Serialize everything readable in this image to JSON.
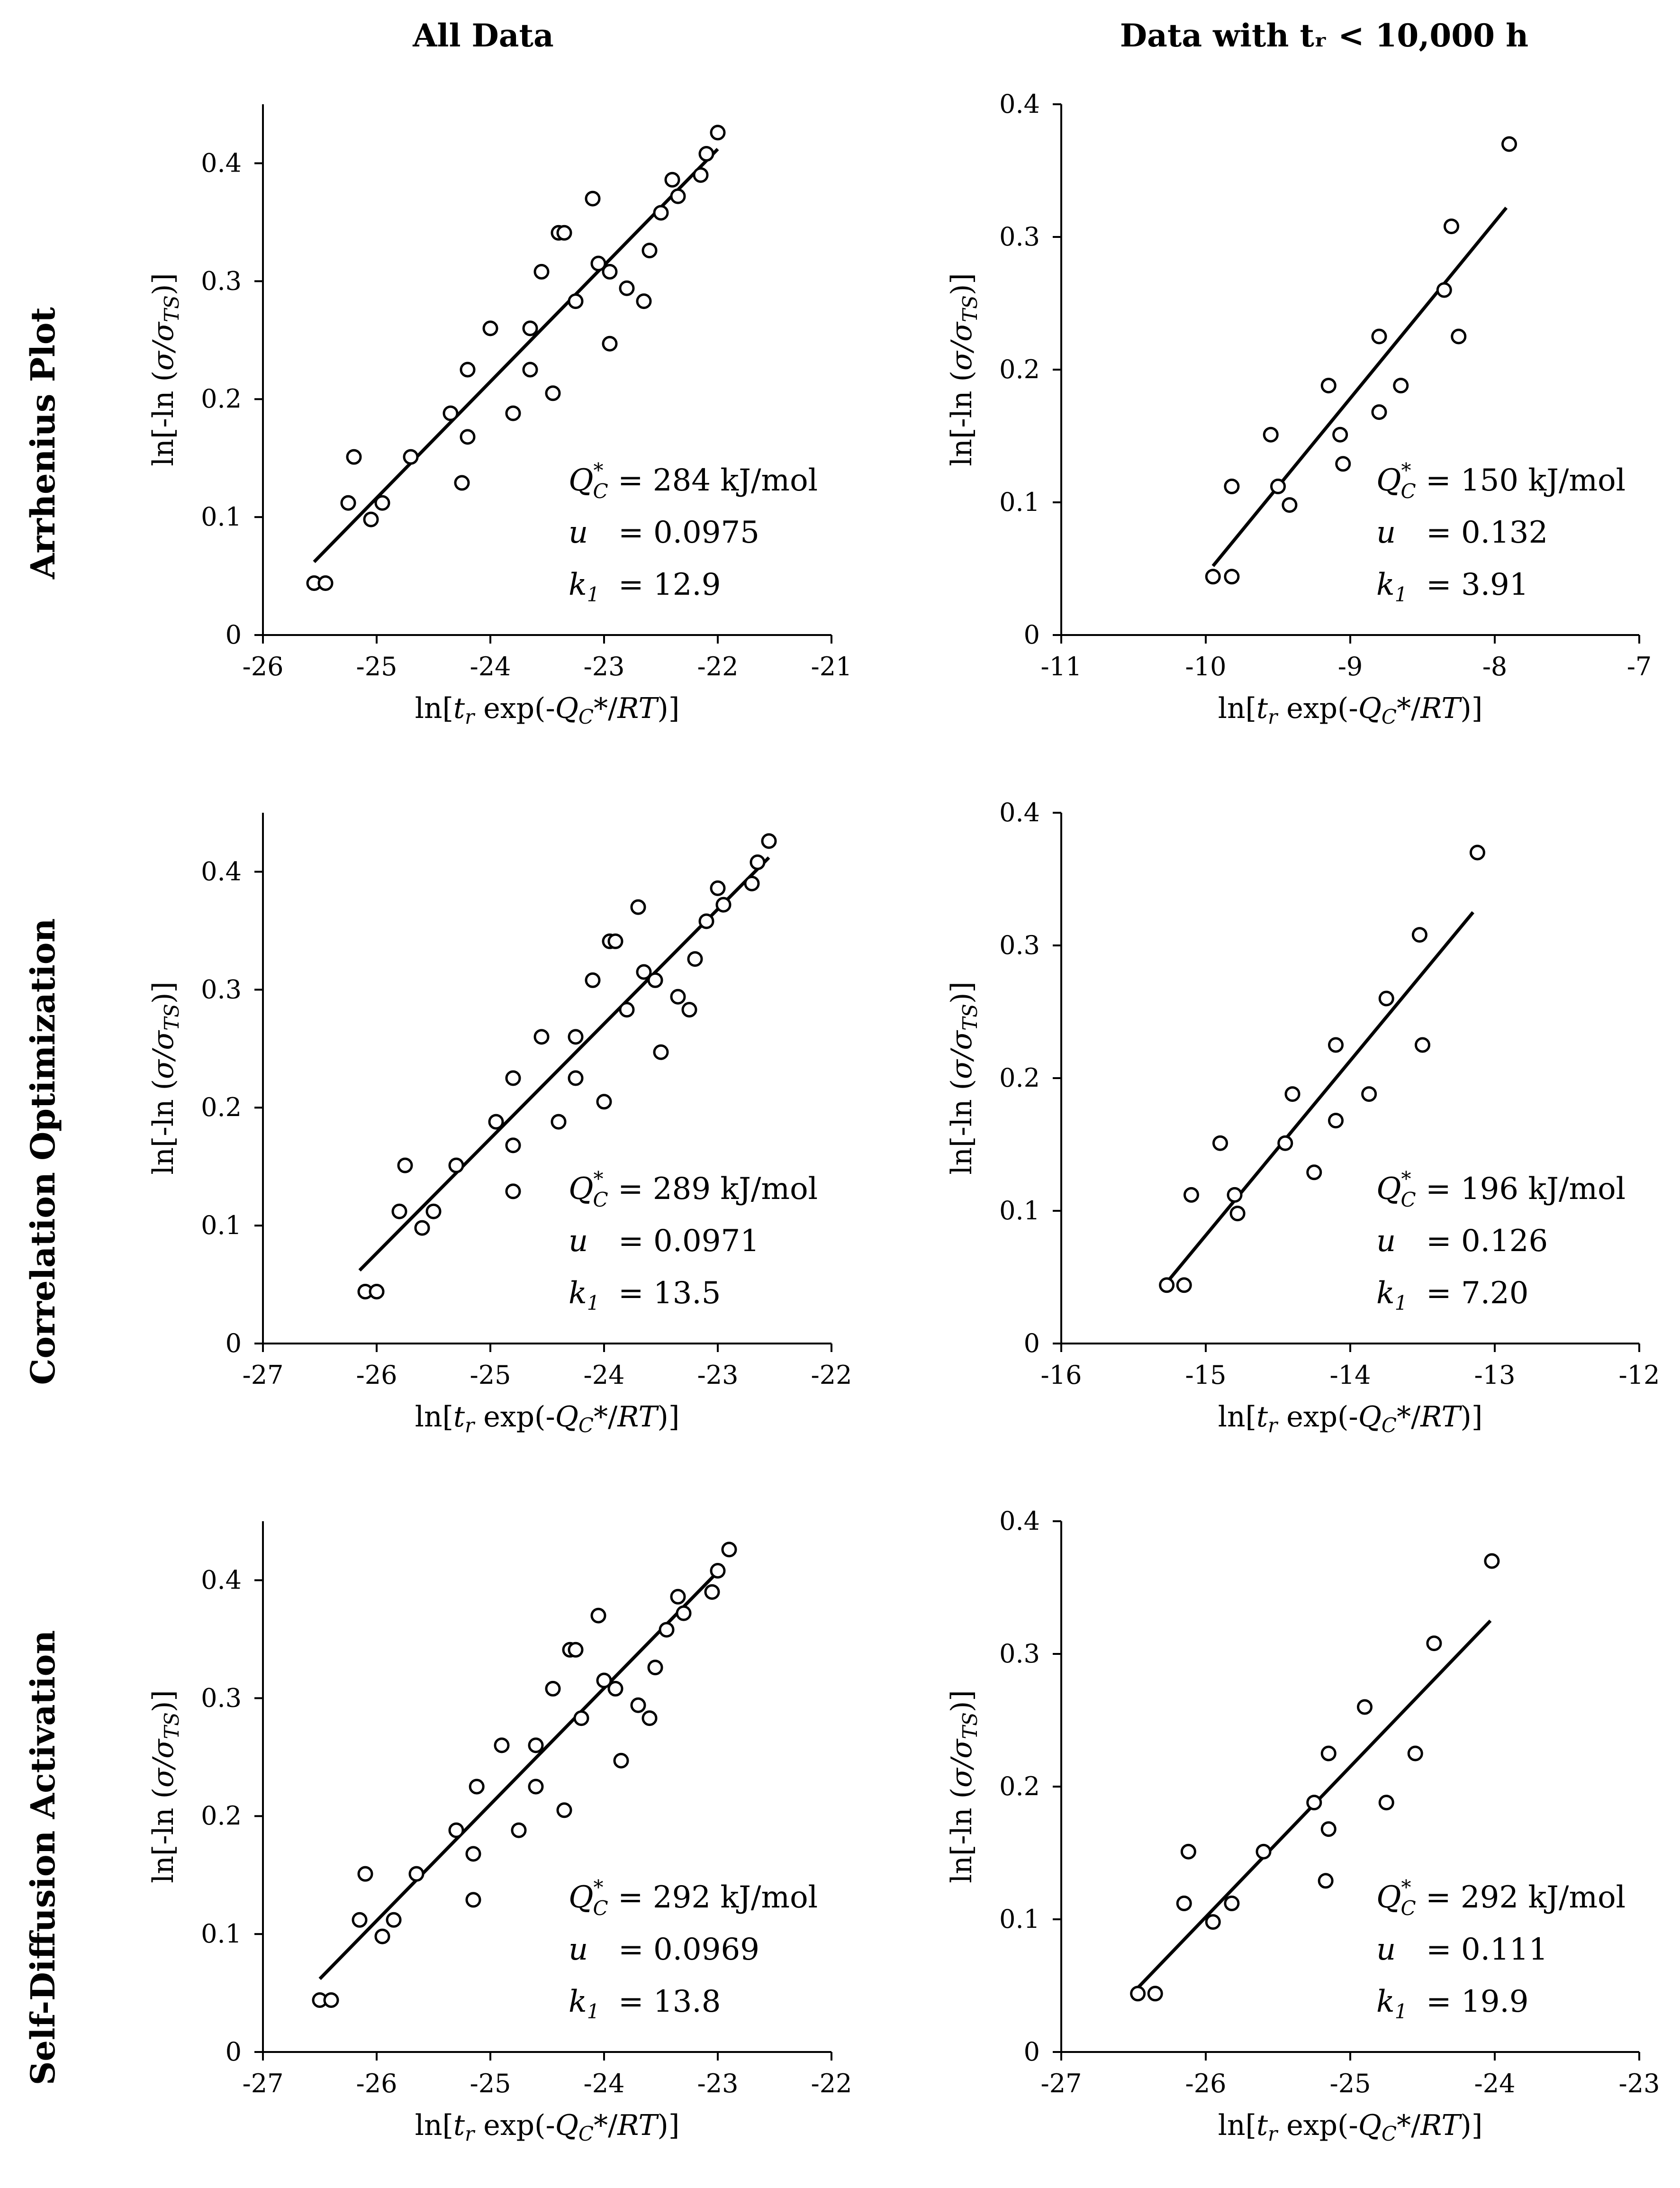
{
  "column_headers": [
    "All Data",
    "Data with tᵣ < 10,000 h"
  ],
  "row_headers": [
    "Arrhenius Plot",
    "Correlation Optimization",
    "Self-Diffusion Activation"
  ],
  "chart_data": [
    {
      "type": "scatter",
      "panel": "Arrhenius Plot – All Data",
      "xlabel": "ln[tr exp(-QC*/RT)]",
      "ylabel": "ln[-ln (σ/σTS)]",
      "xlim": [
        -26,
        -21
      ],
      "xticks": [
        -26,
        -25,
        -24,
        -23,
        -22,
        -21
      ],
      "ylim": [
        0,
        0.45
      ],
      "yticks": [
        0,
        0.1,
        0.2,
        0.3,
        0.4
      ],
      "points": [
        [
          -25.55,
          0.044
        ],
        [
          -25.45,
          0.044
        ],
        [
          -25.25,
          0.112
        ],
        [
          -25.2,
          0.151
        ],
        [
          -25.05,
          0.098
        ],
        [
          -24.95,
          0.112
        ],
        [
          -24.7,
          0.151
        ],
        [
          -24.35,
          0.188
        ],
        [
          -24.25,
          0.129
        ],
        [
          -24.2,
          0.168
        ],
        [
          -24.2,
          0.225
        ],
        [
          -24.0,
          0.26
        ],
        [
          -23.8,
          0.188
        ],
        [
          -23.65,
          0.225
        ],
        [
          -23.65,
          0.26
        ],
        [
          -23.55,
          0.308
        ],
        [
          -23.45,
          0.205
        ],
        [
          -23.4,
          0.341
        ],
        [
          -23.35,
          0.341
        ],
        [
          -23.25,
          0.283
        ],
        [
          -23.1,
          0.37
        ],
        [
          -23.05,
          0.315
        ],
        [
          -22.95,
          0.308
        ],
        [
          -22.95,
          0.247
        ],
        [
          -22.8,
          0.294
        ],
        [
          -22.65,
          0.283
        ],
        [
          -22.6,
          0.326
        ],
        [
          -22.5,
          0.358
        ],
        [
          -22.4,
          0.386
        ],
        [
          -22.35,
          0.372
        ],
        [
          -22.15,
          0.39
        ],
        [
          -22.1,
          0.408
        ],
        [
          -22.0,
          0.426
        ]
      ],
      "fit_line": [
        [
          -25.55,
          0.062
        ],
        [
          -22.0,
          0.412
        ]
      ],
      "annotation": {
        "Q_label": "Q",
        "Q_sub": "C",
        "Q_sup": "*",
        "Q_value": "= 284 kJ/mol",
        "u_label": "u",
        "u_value": "= 0.0975",
        "k_label": "k",
        "k_sub": "1",
        "k_value": "= 12.9"
      }
    },
    {
      "type": "scatter",
      "panel": "Arrhenius Plot – Data with tr < 10,000 h",
      "xlabel": "ln[tr exp(-QC*/RT)]",
      "ylabel": "ln[-ln (σ/σTS)]",
      "xlim": [
        -11,
        -7
      ],
      "xticks": [
        -11,
        -10,
        -9,
        -8,
        -7
      ],
      "ylim": [
        0,
        0.4
      ],
      "yticks": [
        0,
        0.1,
        0.2,
        0.3,
        0.4
      ],
      "points": [
        [
          -9.95,
          0.044
        ],
        [
          -9.82,
          0.044
        ],
        [
          -9.82,
          0.112
        ],
        [
          -9.55,
          0.151
        ],
        [
          -9.5,
          0.112
        ],
        [
          -9.42,
          0.098
        ],
        [
          -9.15,
          0.188
        ],
        [
          -9.07,
          0.151
        ],
        [
          -9.05,
          0.129
        ],
        [
          -8.8,
          0.168
        ],
        [
          -8.8,
          0.225
        ],
        [
          -8.65,
          0.188
        ],
        [
          -8.35,
          0.26
        ],
        [
          -8.3,
          0.308
        ],
        [
          -8.25,
          0.225
        ],
        [
          -7.9,
          0.37
        ]
      ],
      "fit_line": [
        [
          -9.95,
          0.052
        ],
        [
          -7.92,
          0.322
        ]
      ],
      "annotation": {
        "Q_label": "Q",
        "Q_sub": "C",
        "Q_sup": "*",
        "Q_value": "= 150 kJ/mol",
        "u_label": "u",
        "u_value": "= 0.132",
        "k_label": "k",
        "k_sub": "1",
        "k_value": "= 3.91"
      }
    },
    {
      "type": "scatter",
      "panel": "Correlation Optimization – All Data",
      "xlabel": "ln[tr exp(-QC*/RT)]",
      "ylabel": "ln[-ln (σ/σTS)]",
      "xlim": [
        -27,
        -22
      ],
      "xticks": [
        -27,
        -26,
        -25,
        -24,
        -23,
        -22
      ],
      "ylim": [
        0,
        0.45
      ],
      "yticks": [
        0,
        0.1,
        0.2,
        0.3,
        0.4
      ],
      "points": [
        [
          -26.1,
          0.044
        ],
        [
          -26.0,
          0.044
        ],
        [
          -25.8,
          0.112
        ],
        [
          -25.75,
          0.151
        ],
        [
          -25.6,
          0.098
        ],
        [
          -25.5,
          0.112
        ],
        [
          -25.3,
          0.151
        ],
        [
          -24.95,
          0.188
        ],
        [
          -24.8,
          0.129
        ],
        [
          -24.8,
          0.168
        ],
        [
          -24.8,
          0.225
        ],
        [
          -24.55,
          0.26
        ],
        [
          -24.4,
          0.188
        ],
        [
          -24.25,
          0.225
        ],
        [
          -24.25,
          0.26
        ],
        [
          -24.1,
          0.308
        ],
        [
          -24.0,
          0.205
        ],
        [
          -23.95,
          0.341
        ],
        [
          -23.9,
          0.341
        ],
        [
          -23.8,
          0.283
        ],
        [
          -23.7,
          0.37
        ],
        [
          -23.65,
          0.315
        ],
        [
          -23.55,
          0.308
        ],
        [
          -23.5,
          0.247
        ],
        [
          -23.35,
          0.294
        ],
        [
          -23.25,
          0.283
        ],
        [
          -23.2,
          0.326
        ],
        [
          -23.1,
          0.358
        ],
        [
          -23.0,
          0.386
        ],
        [
          -22.95,
          0.372
        ],
        [
          -22.7,
          0.39
        ],
        [
          -22.65,
          0.408
        ],
        [
          -22.55,
          0.426
        ]
      ],
      "fit_line": [
        [
          -26.15,
          0.062
        ],
        [
          -22.55,
          0.412
        ]
      ],
      "annotation": {
        "Q_label": "Q",
        "Q_sub": "C",
        "Q_sup": "*",
        "Q_value": "= 289 kJ/mol",
        "u_label": "u",
        "u_value": "= 0.0971",
        "k_label": "k",
        "k_sub": "1",
        "k_value": "= 13.5"
      }
    },
    {
      "type": "scatter",
      "panel": "Correlation Optimization – Data with tr < 10,000 h",
      "xlabel": "ln[tr exp(-QC*/RT)]",
      "ylabel": "ln[-ln (σ/σTS)]",
      "xlim": [
        -16,
        -12
      ],
      "xticks": [
        -16,
        -15,
        -14,
        -13,
        -12
      ],
      "ylim": [
        0,
        0.4
      ],
      "yticks": [
        0,
        0.1,
        0.2,
        0.3,
        0.4
      ],
      "points": [
        [
          -15.27,
          0.044
        ],
        [
          -15.15,
          0.044
        ],
        [
          -15.1,
          0.112
        ],
        [
          -14.9,
          0.151
        ],
        [
          -14.8,
          0.112
        ],
        [
          -14.78,
          0.098
        ],
        [
          -14.4,
          0.188
        ],
        [
          -14.45,
          0.151
        ],
        [
          -14.25,
          0.129
        ],
        [
          -14.1,
          0.168
        ],
        [
          -14.1,
          0.225
        ],
        [
          -13.87,
          0.188
        ],
        [
          -13.75,
          0.26
        ],
        [
          -13.52,
          0.308
        ],
        [
          -13.5,
          0.225
        ],
        [
          -13.12,
          0.37
        ]
      ],
      "fit_line": [
        [
          -15.3,
          0.042
        ],
        [
          -13.15,
          0.325
        ]
      ],
      "annotation": {
        "Q_label": "Q",
        "Q_sub": "C",
        "Q_sup": "*",
        "Q_value": "= 196 kJ/mol",
        "u_label": "u",
        "u_value": "= 0.126",
        "k_label": "k",
        "k_sub": "1",
        "k_value": "= 7.20"
      }
    },
    {
      "type": "scatter",
      "panel": "Self-Diffusion Activation – All Data",
      "xlabel": "ln[tr exp(-QC*/RT)]",
      "ylabel": "ln[-ln (σ/σTS)]",
      "xlim": [
        -27,
        -22
      ],
      "xticks": [
        -27,
        -26,
        -25,
        -24,
        -23,
        -22
      ],
      "ylim": [
        0,
        0.45
      ],
      "yticks": [
        0,
        0.1,
        0.2,
        0.3,
        0.4
      ],
      "points": [
        [
          -26.5,
          0.044
        ],
        [
          -26.4,
          0.044
        ],
        [
          -26.15,
          0.112
        ],
        [
          -26.1,
          0.151
        ],
        [
          -25.95,
          0.098
        ],
        [
          -25.85,
          0.112
        ],
        [
          -25.65,
          0.151
        ],
        [
          -25.3,
          0.188
        ],
        [
          -25.15,
          0.129
        ],
        [
          -25.15,
          0.168
        ],
        [
          -25.12,
          0.225
        ],
        [
          -24.9,
          0.26
        ],
        [
          -24.75,
          0.188
        ],
        [
          -24.6,
          0.225
        ],
        [
          -24.6,
          0.26
        ],
        [
          -24.45,
          0.308
        ],
        [
          -24.35,
          0.205
        ],
        [
          -24.3,
          0.341
        ],
        [
          -24.25,
          0.341
        ],
        [
          -24.2,
          0.283
        ],
        [
          -24.05,
          0.37
        ],
        [
          -24.0,
          0.315
        ],
        [
          -23.9,
          0.308
        ],
        [
          -23.85,
          0.247
        ],
        [
          -23.7,
          0.294
        ],
        [
          -23.6,
          0.283
        ],
        [
          -23.55,
          0.326
        ],
        [
          -23.45,
          0.358
        ],
        [
          -23.35,
          0.386
        ],
        [
          -23.3,
          0.372
        ],
        [
          -23.05,
          0.39
        ],
        [
          -23.0,
          0.408
        ],
        [
          -22.9,
          0.426
        ]
      ],
      "fit_line": [
        [
          -26.5,
          0.062
        ],
        [
          -22.95,
          0.412
        ]
      ],
      "annotation": {
        "Q_label": "Q",
        "Q_sub": "C",
        "Q_sup": "*",
        "Q_value": "= 292 kJ/mol",
        "u_label": "u",
        "u_value": "= 0.0969",
        "k_label": "k",
        "k_sub": "1",
        "k_value": "= 13.8"
      }
    },
    {
      "type": "scatter",
      "panel": "Self-Diffusion Activation – Data with tr < 10,000 h",
      "xlabel": "ln[tr exp(-QC*/RT)]",
      "ylabel": "ln[-ln (σ/σTS)]",
      "xlim": [
        -27,
        -23
      ],
      "xticks": [
        -27,
        -26,
        -25,
        -24,
        -23
      ],
      "ylim": [
        0,
        0.4
      ],
      "yticks": [
        0,
        0.1,
        0.2,
        0.3,
        0.4
      ],
      "points": [
        [
          -26.47,
          0.044
        ],
        [
          -26.35,
          0.044
        ],
        [
          -26.15,
          0.112
        ],
        [
          -26.12,
          0.151
        ],
        [
          -25.95,
          0.098
        ],
        [
          -25.82,
          0.112
        ],
        [
          -25.6,
          0.151
        ],
        [
          -25.25,
          0.188
        ],
        [
          -25.17,
          0.129
        ],
        [
          -25.15,
          0.168
        ],
        [
          -25.15,
          0.225
        ],
        [
          -24.9,
          0.26
        ],
        [
          -24.75,
          0.188
        ],
        [
          -24.55,
          0.225
        ],
        [
          -24.42,
          0.308
        ],
        [
          -24.02,
          0.37
        ]
      ],
      "fit_line": [
        [
          -26.5,
          0.045
        ],
        [
          -24.03,
          0.325
        ]
      ],
      "annotation": {
        "Q_label": "Q",
        "Q_sub": "C",
        "Q_sup": "*",
        "Q_value": "= 292 kJ/mol",
        "u_label": "u",
        "u_value": "= 0.111",
        "k_label": "k",
        "k_sub": "1",
        "k_value": "= 19.9"
      }
    }
  ]
}
